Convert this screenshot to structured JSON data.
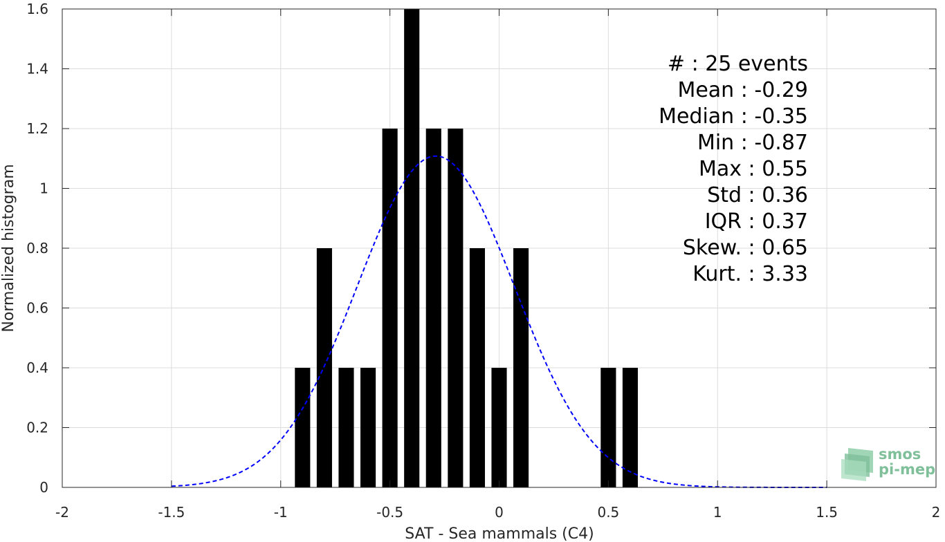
{
  "chart_data": {
    "type": "bar",
    "xlabel": "SAT - Sea mammals (C4)",
    "ylabel": "Normalized histogram",
    "xlim": [
      -2,
      2
    ],
    "ylim": [
      0,
      1.6
    ],
    "xticks": [
      -2,
      -1.5,
      -1,
      -0.5,
      0,
      0.5,
      1,
      1.5,
      2
    ],
    "xtick_labels": [
      "-2",
      "-1.5",
      "-1",
      "-0.5",
      "0",
      "0.5",
      "1",
      "1.5",
      "2"
    ],
    "yticks": [
      0,
      0.2,
      0.4,
      0.6,
      0.8,
      1,
      1.2,
      1.4,
      1.6
    ],
    "ytick_labels": [
      "0",
      "0.2",
      "0.4",
      "0.6",
      "0.8",
      "1",
      "1.2",
      "1.4",
      "1.6"
    ],
    "grid": true,
    "bar_width": 0.07,
    "bars": [
      {
        "x": -0.9,
        "value": 0.4
      },
      {
        "x": -0.8,
        "value": 0.8
      },
      {
        "x": -0.7,
        "value": 0.4
      },
      {
        "x": -0.6,
        "value": 0.4
      },
      {
        "x": -0.5,
        "value": 1.2
      },
      {
        "x": -0.4,
        "value": 1.6
      },
      {
        "x": -0.3,
        "value": 1.2
      },
      {
        "x": -0.2,
        "value": 1.2
      },
      {
        "x": -0.1,
        "value": 0.8
      },
      {
        "x": 0.0,
        "value": 0.4
      },
      {
        "x": 0.1,
        "value": 0.8
      },
      {
        "x": 0.5,
        "value": 0.4
      },
      {
        "x": 0.6,
        "value": 0.4
      }
    ],
    "fit_curve": {
      "type": "normal",
      "mean": -0.29,
      "std": 0.36,
      "x_range": [
        -1.5,
        1.5
      ],
      "color": "#0000ff",
      "style": "dashed"
    },
    "bar_color": "#000000",
    "annotations": [
      "#  : 25 events",
      "Mean : -0.29",
      "Median : -0.35",
      "Min : -0.87",
      "Max : 0.55",
      "Std : 0.36",
      "IQR : 0.37",
      "Skew. : 0.65",
      "Kurt. : 3.33"
    ]
  },
  "logo": {
    "line1": "smos",
    "line2": "pi-mep",
    "color": "#7fbf9a"
  }
}
